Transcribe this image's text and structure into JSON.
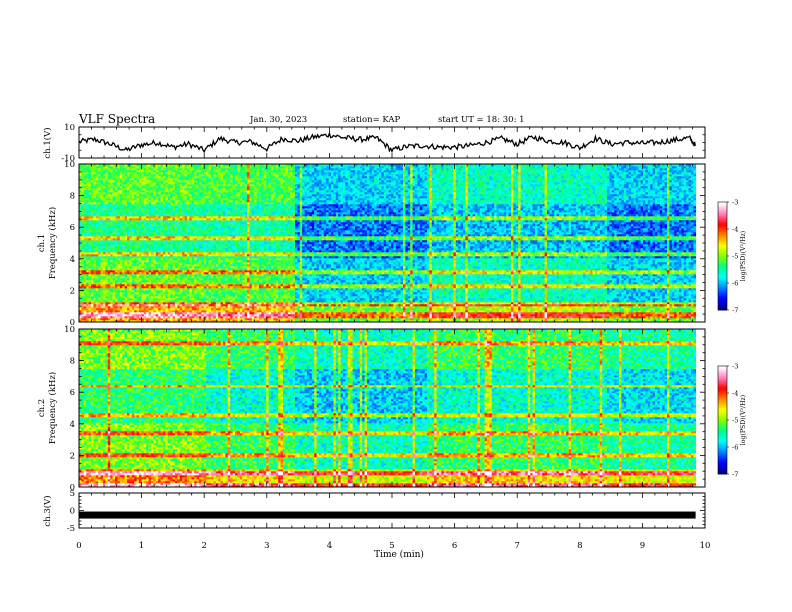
{
  "header": {
    "title": "VLF Spectra",
    "date": "Jan. 30, 2023",
    "station": "station= KAP",
    "start": "start  UT  =   18: 30: 1"
  },
  "colors": {
    "spectrogram_scale": [
      "#000088",
      "#0000ff",
      "#0080ff",
      "#00ffff",
      "#00ff80",
      "#80ff00",
      "#ffff00",
      "#ff8000",
      "#ff0000",
      "#ff80c0",
      "#ffffff"
    ],
    "trace": "#000000"
  },
  "chart_data": [
    {
      "type": "line",
      "panel": "ch1-waveform",
      "ylabel": "ch.1(V)",
      "ylim": [
        -10,
        10
      ],
      "yticks": [
        "10",
        "-10"
      ],
      "xlim": [
        0,
        10
      ],
      "series": [
        {
          "x": [
            0,
            0.25,
            0.5,
            0.75,
            1.0,
            1.25,
            1.5,
            1.75,
            2.0,
            2.25,
            2.5,
            2.75,
            3.0,
            3.25,
            3.5,
            3.75,
            4.0,
            4.25,
            4.5,
            4.75,
            5.0,
            5.25,
            5.5,
            5.75,
            6.0,
            6.25,
            6.5,
            6.75,
            7.0,
            7.25,
            7.5,
            7.75,
            8.0,
            8.25,
            8.5,
            8.75,
            9.0,
            9.25,
            9.5,
            9.75,
            9.85
          ],
          "values": [
            0.5,
            2.0,
            -1.0,
            -5.0,
            -1.5,
            0.0,
            -3.0,
            -1.0,
            -5.0,
            2.5,
            0.0,
            0.5,
            -4.0,
            2.5,
            1.0,
            3.5,
            5.0,
            3.0,
            2.0,
            3.0,
            -5.0,
            -2.5,
            -2.0,
            -3.0,
            -3.0,
            -2.0,
            0.0,
            2.5,
            -1.0,
            3.5,
            1.0,
            0.0,
            -3.5,
            2.5,
            -1.0,
            0.0,
            -0.5,
            0.0,
            1.5,
            3.0,
            -2.0
          ]
        }
      ]
    },
    {
      "type": "heatmap",
      "panel": "ch1-spectrogram",
      "ylabel": "ch.1\nFrequency (kHz)",
      "ylim": [
        0,
        10
      ],
      "yticks": [
        "0",
        "2",
        "4",
        "6",
        "8",
        "10"
      ],
      "xlim": [
        0,
        10
      ],
      "colorbar": {
        "label": "log(PSD)(V²/Hz)",
        "range": [
          -7,
          -3
        ],
        "ticks": [
          "-3",
          "-4",
          "-5",
          "-6",
          "-7"
        ]
      },
      "segments": [
        {
          "x": [
            0,
            1.85
          ],
          "level": -5.1
        },
        {
          "x": [
            1.85,
            3.45
          ],
          "level": -5.2
        },
        {
          "x": [
            3.45,
            5.55
          ],
          "level": -5.9
        },
        {
          "x": [
            5.55,
            8.4
          ],
          "level": -5.6
        },
        {
          "x": [
            8.4,
            9.85
          ],
          "level": -5.9
        }
      ]
    },
    {
      "type": "heatmap",
      "panel": "ch2-spectrogram",
      "ylabel": "ch.2\nFrequency (kHz)",
      "ylim": [
        0,
        10
      ],
      "yticks": [
        "0",
        "2",
        "4",
        "6",
        "8",
        "10"
      ],
      "xlim": [
        0,
        10
      ],
      "colorbar": {
        "label": "log(PSD)(V²/Hz)",
        "range": [
          -7,
          -3
        ],
        "ticks": [
          "-3",
          "-4",
          "-5",
          "-6",
          "-7"
        ]
      },
      "segments": [
        {
          "x": [
            0,
            2.0
          ],
          "level": -5.0
        },
        {
          "x": [
            2.0,
            3.45
          ],
          "level": -5.3
        },
        {
          "x": [
            3.45,
            5.55
          ],
          "level": -5.6
        },
        {
          "x": [
            5.55,
            8.4
          ],
          "level": -5.3
        },
        {
          "x": [
            8.4,
            9.85
          ],
          "level": -5.5
        }
      ]
    },
    {
      "type": "line",
      "panel": "ch3-waveform",
      "ylabel": "ch.3(V)",
      "ylim": [
        -5,
        5
      ],
      "yticks": [
        "5",
        "0",
        "-5"
      ],
      "xlabel": "Time  (min)",
      "xlim": [
        0,
        10
      ],
      "xticks": [
        "0",
        "1",
        "2",
        "3",
        "4",
        "5",
        "6",
        "7",
        "8",
        "9",
        "10"
      ],
      "series": [
        {
          "x": [
            0,
            9.85
          ],
          "values": [
            -1.3,
            -1.3
          ]
        }
      ]
    }
  ]
}
